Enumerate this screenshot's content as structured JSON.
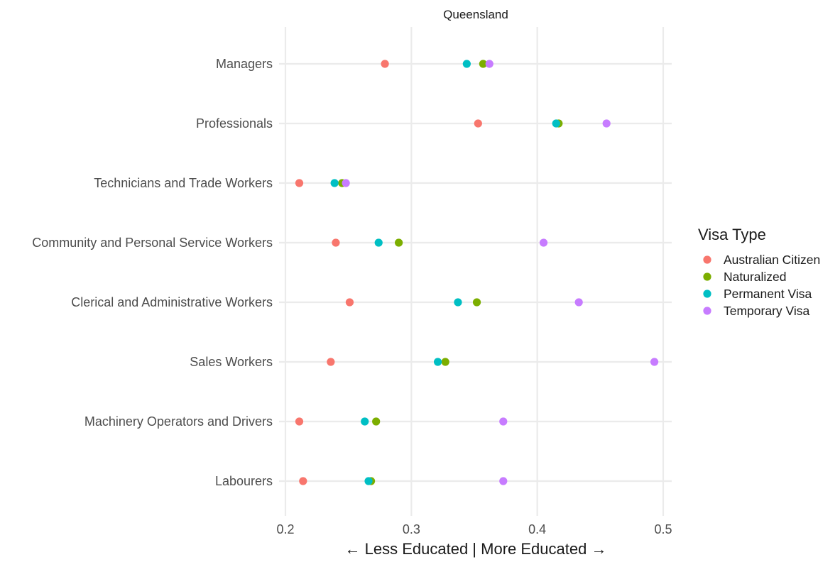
{
  "chart_data": {
    "type": "scatter",
    "title": "Queensland",
    "xlabel": "← Less Educated | More Educated →",
    "ylabel": "",
    "xlim": [
      0.2,
      0.5
    ],
    "xticks": [
      0.2,
      0.3,
      0.4,
      0.5
    ],
    "x_tick_labels": [
      "0.2",
      "0.3",
      "0.4",
      "0.5"
    ],
    "grid": true,
    "legend_position": "right",
    "legend_title": "Visa Type",
    "categories": [
      "Managers",
      "Professionals",
      "Technicians and Trade Workers",
      "Community and Personal Service Workers",
      "Clerical and Administrative Workers",
      "Sales Workers",
      "Machinery Operators and Drivers",
      "Labourers"
    ],
    "series": [
      {
        "name": "Australian Citizen",
        "color": "#F8766D",
        "values": [
          0.279,
          0.353,
          0.211,
          0.24,
          0.251,
          0.236,
          0.211,
          0.214
        ]
      },
      {
        "name": "Naturalized",
        "color": "#7CAE00",
        "values": [
          0.357,
          0.417,
          0.245,
          0.29,
          0.352,
          0.327,
          0.272,
          0.268
        ]
      },
      {
        "name": "Permanent Visa",
        "color": "#00BFC4",
        "values": [
          0.344,
          0.415,
          0.239,
          0.274,
          0.337,
          0.321,
          0.263,
          0.266
        ]
      },
      {
        "name": "Temporary Visa",
        "color": "#C77CFF",
        "values": [
          0.362,
          0.455,
          0.248,
          0.405,
          0.433,
          0.493,
          0.373,
          0.373
        ]
      }
    ]
  }
}
